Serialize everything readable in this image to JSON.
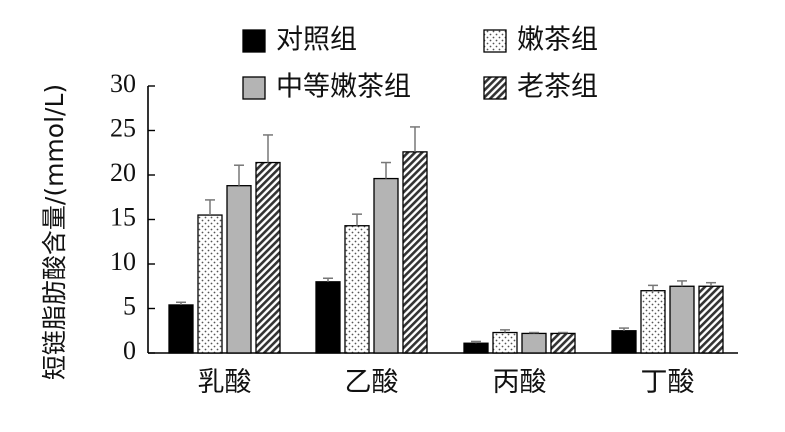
{
  "chart_data": {
    "type": "bar",
    "title": "",
    "xlabel": "",
    "ylabel": "短链脂肪酸含量/(mmol/L)",
    "ylim": [
      0,
      30
    ],
    "yticks": [
      0,
      5,
      10,
      15,
      20,
      25,
      30
    ],
    "grid": false,
    "legend_position": "top",
    "categories": [
      "乳酸",
      "乙酸",
      "丙酸",
      "丁酸"
    ],
    "series": [
      {
        "name": "对照组",
        "pattern": "solid-black",
        "color": "#000000",
        "values": [
          5.4,
          8.0,
          1.1,
          2.5
        ],
        "errors": [
          0.3,
          0.4,
          0.2,
          0.3
        ]
      },
      {
        "name": "嫩茶组",
        "pattern": "dotted-white",
        "color": "#ffffff",
        "values": [
          15.5,
          14.3,
          2.3,
          7.0
        ],
        "errors": [
          1.7,
          1.3,
          0.3,
          0.6
        ]
      },
      {
        "name": "中等嫩茶组",
        "pattern": "solid-gray",
        "color": "#b4b4b4",
        "values": [
          18.8,
          19.6,
          2.2,
          7.5
        ],
        "errors": [
          2.3,
          1.8,
          0.1,
          0.6
        ]
      },
      {
        "name": "老茶组",
        "pattern": "diagonal-hatch",
        "color": "#555555",
        "values": [
          21.4,
          22.6,
          2.2,
          7.5
        ],
        "errors": [
          3.1,
          2.8,
          0.1,
          0.4
        ]
      }
    ]
  }
}
